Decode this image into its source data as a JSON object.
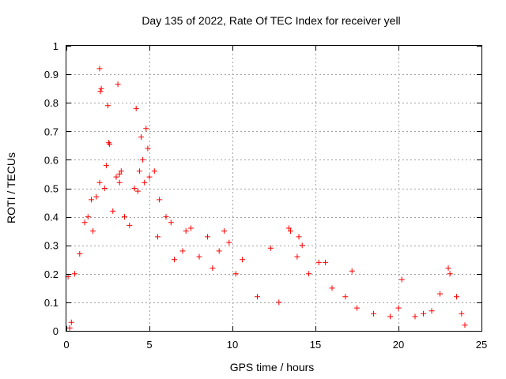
{
  "chart_data": {
    "type": "scatter",
    "title": "Day 135 of 2022, Rate Of TEC Index for receiver yell",
    "xlabel": "GPS time / hours",
    "ylabel": "ROTI / TECUs",
    "xlim": [
      0,
      25
    ],
    "ylim": [
      0,
      1
    ],
    "xticks": [
      0,
      5,
      10,
      15,
      20,
      25
    ],
    "xtick_labels": [
      "0",
      "5",
      "10",
      "15",
      "20",
      "25"
    ],
    "yticks": [
      0,
      0.1,
      0.2,
      0.3,
      0.4,
      0.5,
      0.6,
      0.7,
      0.8,
      0.9,
      1
    ],
    "ytick_labels": [
      "0",
      "0.1",
      "0.2",
      "0.3",
      "0.4",
      "0.5",
      "0.6",
      "0.7",
      "0.8",
      "0.9",
      "1"
    ],
    "grid": true,
    "marker": "+",
    "color": "#ff0000",
    "series": [
      {
        "name": "ROTI",
        "points": [
          [
            2.0,
            0.92
          ],
          [
            2.05,
            0.84
          ],
          [
            2.1,
            0.85
          ],
          [
            3.1,
            0.865
          ],
          [
            2.5,
            0.79
          ],
          [
            4.2,
            0.78
          ],
          [
            4.8,
            0.71
          ],
          [
            4.5,
            0.68
          ],
          [
            2.55,
            0.66
          ],
          [
            2.6,
            0.655
          ],
          [
            4.9,
            0.64
          ],
          [
            4.6,
            0.6
          ],
          [
            3.3,
            0.56
          ],
          [
            3.2,
            0.55
          ],
          [
            2.4,
            0.58
          ],
          [
            4.4,
            0.56
          ],
          [
            5.3,
            0.56
          ],
          [
            5.0,
            0.54
          ],
          [
            1.8,
            0.47
          ],
          [
            1.5,
            0.46
          ],
          [
            2.0,
            0.52
          ],
          [
            2.3,
            0.5
          ],
          [
            3.0,
            0.54
          ],
          [
            3.2,
            0.52
          ],
          [
            4.1,
            0.5
          ],
          [
            4.3,
            0.49
          ],
          [
            4.7,
            0.52
          ],
          [
            5.6,
            0.46
          ],
          [
            6.0,
            0.4
          ],
          [
            6.3,
            0.38
          ],
          [
            7.2,
            0.35
          ],
          [
            7.5,
            0.36
          ],
          [
            8.5,
            0.33
          ],
          [
            9.5,
            0.35
          ],
          [
            9.8,
            0.31
          ],
          [
            10.6,
            0.25
          ],
          [
            12.3,
            0.29
          ],
          [
            13.4,
            0.36
          ],
          [
            13.5,
            0.35
          ],
          [
            14.0,
            0.33
          ],
          [
            14.2,
            0.3
          ],
          [
            15.2,
            0.24
          ],
          [
            15.6,
            0.24
          ],
          [
            17.2,
            0.21
          ],
          [
            20.2,
            0.18
          ],
          [
            23.0,
            0.22
          ],
          [
            23.1,
            0.2
          ],
          [
            22.5,
            0.13
          ],
          [
            0.1,
            0.19
          ],
          [
            0.5,
            0.2
          ],
          [
            0.8,
            0.27
          ],
          [
            1.1,
            0.38
          ],
          [
            1.3,
            0.4
          ],
          [
            1.6,
            0.35
          ],
          [
            2.8,
            0.42
          ],
          [
            3.5,
            0.4
          ],
          [
            3.8,
            0.37
          ],
          [
            5.5,
            0.33
          ],
          [
            6.5,
            0.25
          ],
          [
            7.0,
            0.28
          ],
          [
            8.0,
            0.26
          ],
          [
            8.8,
            0.22
          ],
          [
            9.2,
            0.28
          ],
          [
            10.2,
            0.2
          ],
          [
            11.5,
            0.12
          ],
          [
            12.8,
            0.1
          ],
          [
            13.9,
            0.26
          ],
          [
            14.6,
            0.2
          ],
          [
            16.0,
            0.15
          ],
          [
            16.8,
            0.12
          ],
          [
            17.5,
            0.08
          ],
          [
            18.5,
            0.06
          ],
          [
            19.5,
            0.05
          ],
          [
            20.0,
            0.08
          ],
          [
            21.0,
            0.05
          ],
          [
            21.5,
            0.06
          ],
          [
            22.0,
            0.07
          ],
          [
            23.5,
            0.12
          ],
          [
            23.8,
            0.06
          ],
          [
            24.0,
            0.02
          ],
          [
            0.2,
            0.01
          ],
          [
            0.3,
            0.03
          ]
        ]
      }
    ]
  }
}
